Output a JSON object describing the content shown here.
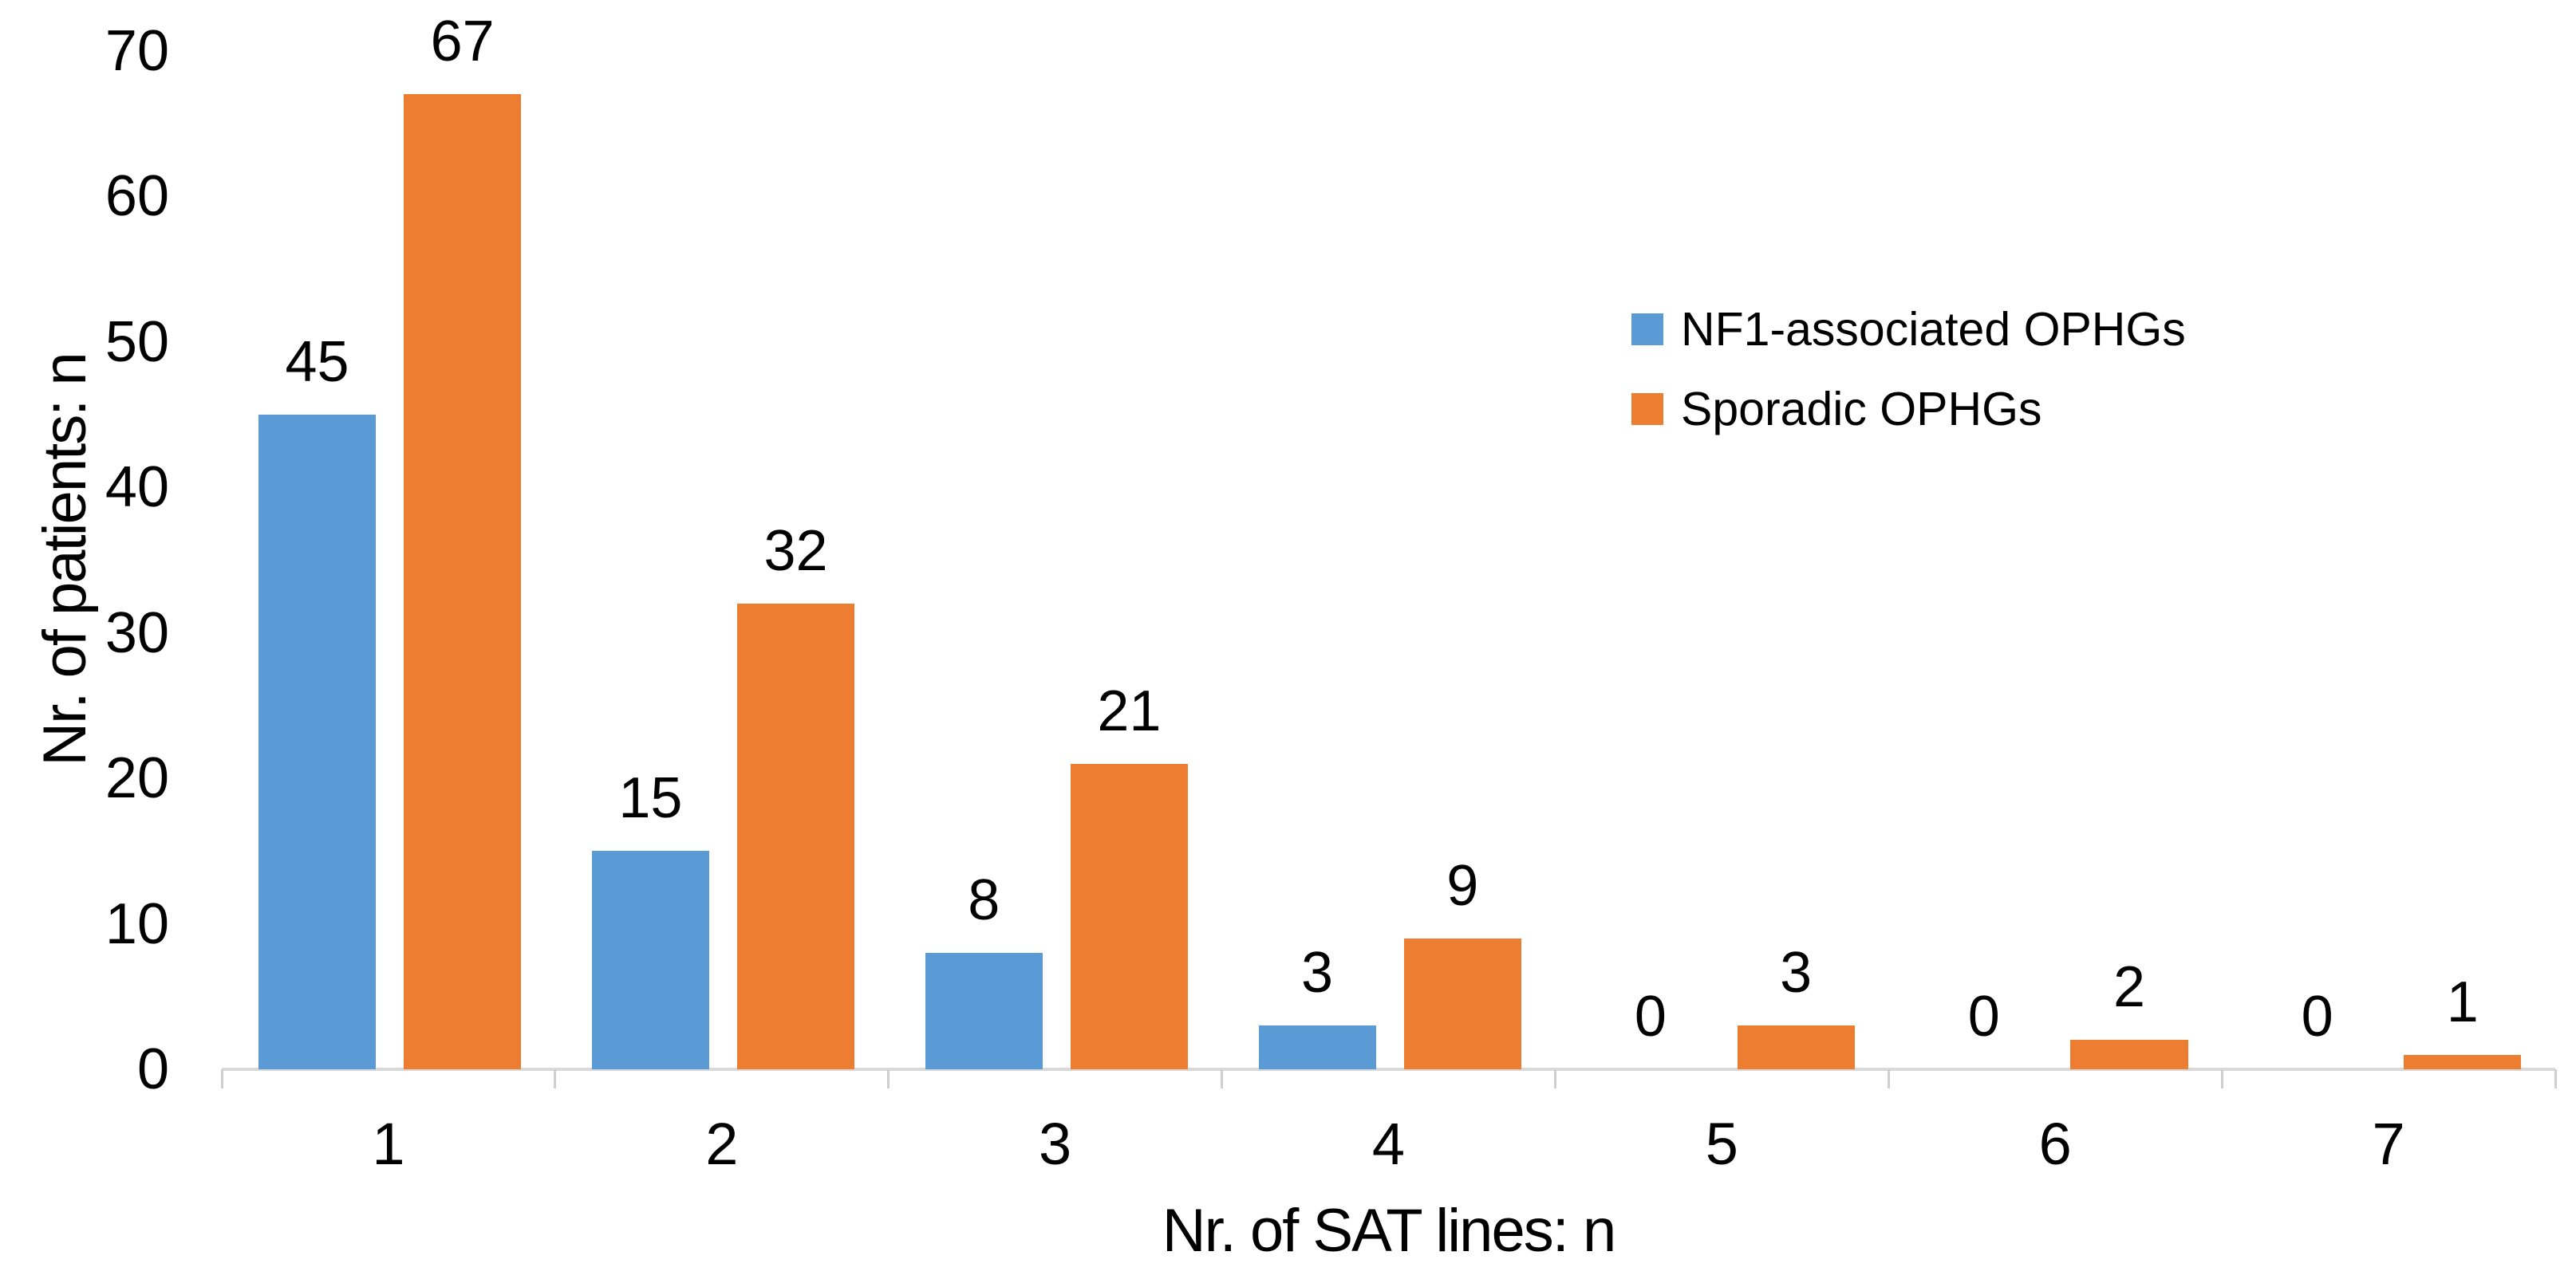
{
  "figure": {
    "background": "#ffffff",
    "text_color": "#000000",
    "axis_line_color": "#D9D9D9",
    "tick_color": "#CFCFCF"
  },
  "chart_data": {
    "type": "bar",
    "title": "",
    "xlabel": "Nr. of SAT lines: n",
    "ylabel": "Nr. of patients: n",
    "categories": [
      "1",
      "2",
      "3",
      "4",
      "5",
      "6",
      "7"
    ],
    "series": [
      {
        "name": "NF1-associated OPHGs",
        "color": "#5B9BD5",
        "values": [
          45,
          15,
          8,
          3,
          0,
          0,
          0
        ]
      },
      {
        "name": "Sporadic OPHGs",
        "color": "#ED7D31",
        "values": [
          67,
          32,
          21,
          9,
          3,
          2,
          1
        ]
      }
    ],
    "ylim": [
      0,
      70
    ],
    "yticks": [
      0,
      10,
      20,
      30,
      40,
      50,
      60,
      70
    ],
    "grid": false,
    "data_labels": true,
    "legend_position": "inside-upper-right"
  }
}
